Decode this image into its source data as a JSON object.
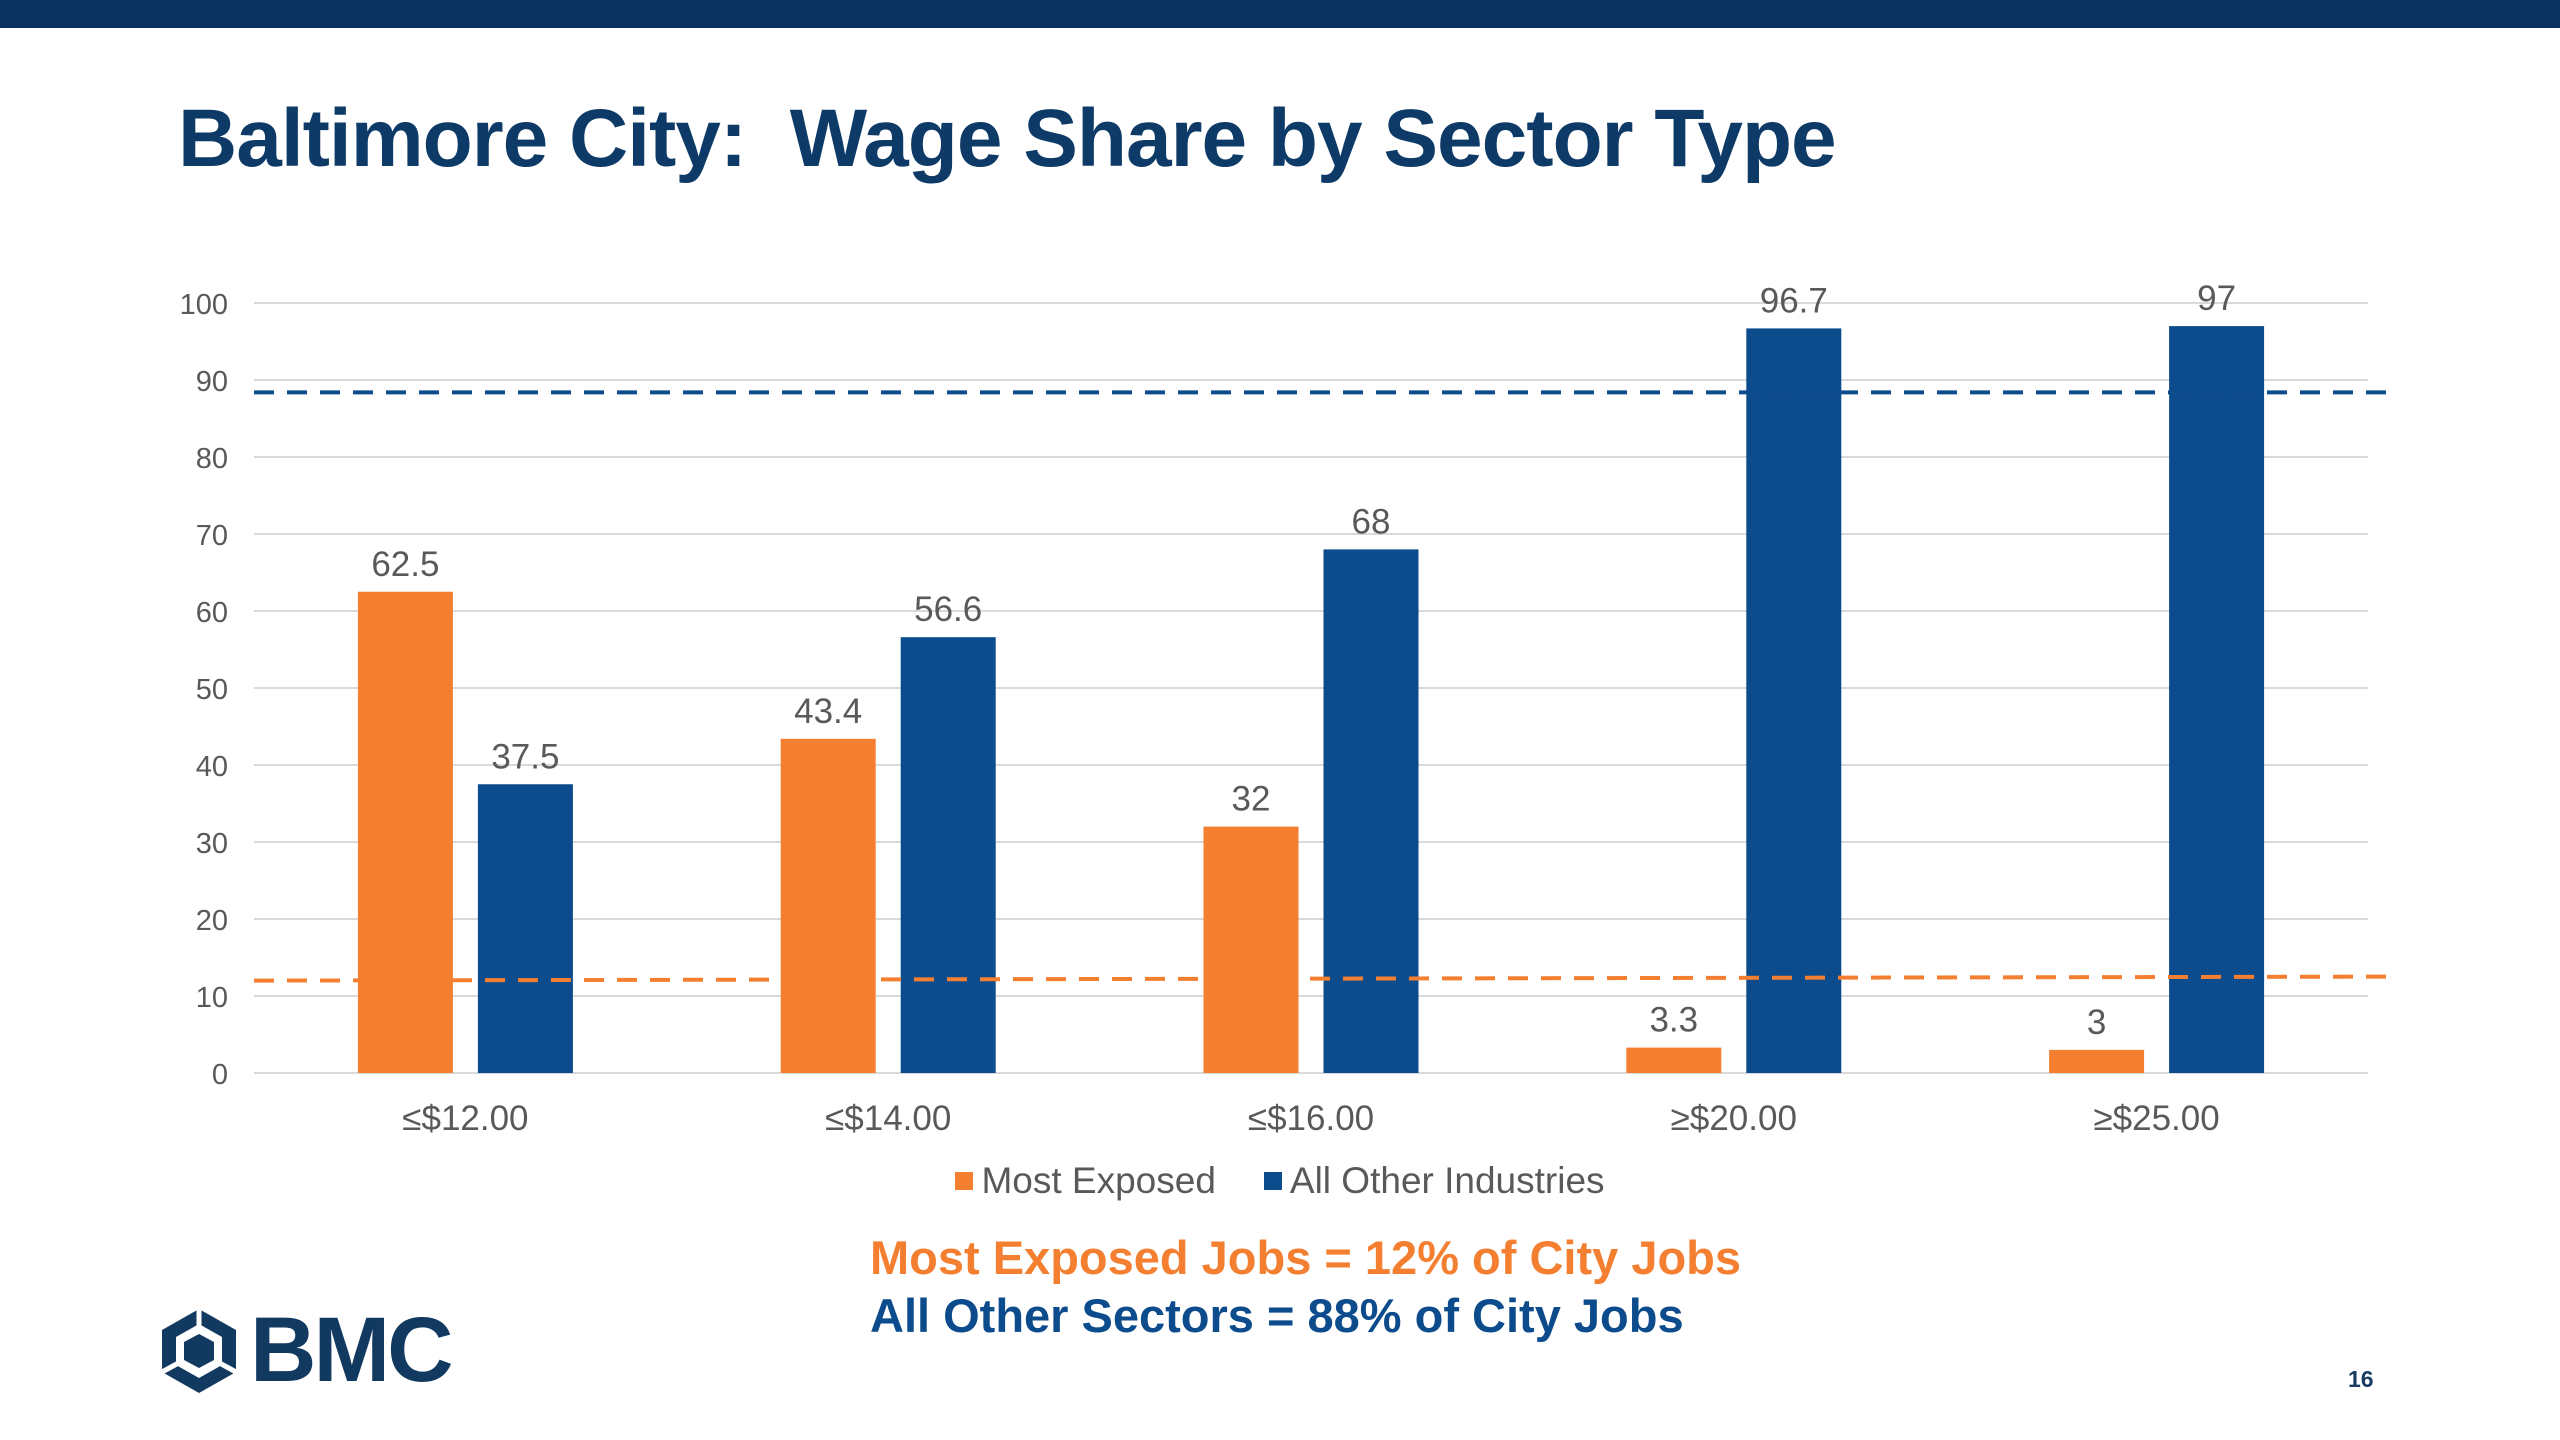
{
  "slide": {
    "title": "Baltimore City:  Wage Share by Sector Type",
    "page_number": "16",
    "logo_text": "BMC",
    "footnote_exposed": "Most Exposed Jobs = 12% of City Jobs",
    "footnote_other": "All Other Sectors = 88% of City Jobs"
  },
  "colors": {
    "most_exposed": "#f47f30",
    "all_other": "#0c4b8c",
    "title": "#0d3a66",
    "gridline": "#d9d9d9",
    "tick_text": "#595959"
  },
  "chart_data": {
    "type": "bar",
    "title": "",
    "xlabel": "",
    "ylabel": "",
    "categories": [
      "≤$12.00",
      "≤$14.00",
      "≤$16.00",
      "≥$20.00",
      "≥$25.00"
    ],
    "series": [
      {
        "name": "Most Exposed",
        "color": "#f47f30",
        "values": [
          62.5,
          43.4,
          32,
          3.3,
          3
        ]
      },
      {
        "name": "All Other Industries",
        "color": "#0c4b8c",
        "values": [
          37.5,
          56.6,
          68,
          96.7,
          97
        ]
      }
    ],
    "ylim": [
      0,
      100
    ],
    "yticks": [
      0,
      10,
      20,
      30,
      40,
      50,
      60,
      70,
      80,
      90,
      100
    ],
    "grid": true,
    "legend_position": "bottom",
    "reference_lines": [
      {
        "name": "All Other Sectors share",
        "value": 88,
        "color": "#0c4b8c",
        "style": "dashed"
      },
      {
        "name": "Most Exposed share",
        "value": 12,
        "color": "#f47f30",
        "style": "dashed"
      }
    ]
  }
}
